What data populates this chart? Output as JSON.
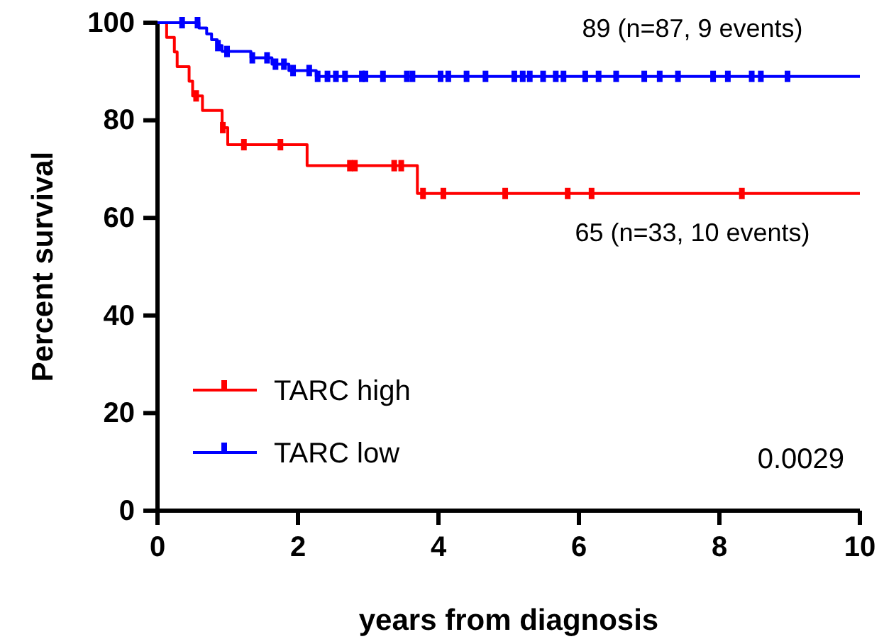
{
  "chart_data": {
    "type": "step",
    "xlabel": "years from diagnosis",
    "ylabel": "Percent survival",
    "xlim": [
      0,
      10
    ],
    "ylim": [
      0,
      100
    ],
    "xticks": [
      0,
      2,
      4,
      6,
      8,
      10
    ],
    "yticks": [
      0,
      20,
      40,
      60,
      80,
      100
    ],
    "grid": false,
    "legend": "bottom left",
    "series": [
      {
        "name": "TARC high",
        "color": "#ff0000",
        "x": [
          0,
          0.13,
          0.24,
          0.28,
          0.45,
          0.5,
          0.64,
          0.92,
          1.0,
          2.13,
          3.7,
          10
        ],
        "values": [
          100,
          97,
          94,
          91,
          88,
          85,
          82,
          78.5,
          75,
          70.7,
          65,
          65
        ]
      },
      {
        "name": "TARC low",
        "color": "#0000ff",
        "x": [
          0,
          0.59,
          0.7,
          0.77,
          0.85,
          0.92,
          1.33,
          1.63,
          1.87,
          2.26,
          10
        ],
        "values": [
          100,
          98.9,
          97.7,
          96.5,
          95.3,
          94.1,
          92.8,
          91.5,
          90.2,
          89,
          89
        ]
      },
      {
        "type": "scatter",
        "color": "#ff0000",
        "x": [
          0.55,
          0.93,
          1.23,
          1.75,
          2.74,
          2.81,
          3.37,
          3.47,
          3.78,
          4.07,
          4.95,
          5.84,
          6.18,
          8.32
        ],
        "values": [
          85,
          78.5,
          75,
          75,
          70.7,
          70.7,
          70.7,
          70.7,
          65,
          65,
          65,
          65,
          65,
          65
        ]
      },
      {
        "type": "scatter",
        "color": "#0000ff",
        "x": [
          0.35,
          0.57,
          0.86,
          0.99,
          1.35,
          1.56,
          1.68,
          1.8,
          1.93,
          2.16,
          2.28,
          2.42,
          2.54,
          2.67,
          2.91,
          2.96,
          3.21,
          3.55,
          3.63,
          4.03,
          4.14,
          4.4,
          4.67,
          5.08,
          5.2,
          5.3,
          5.49,
          5.67,
          5.78,
          6.09,
          6.28,
          6.53,
          6.93,
          7.15,
          7.41,
          7.91,
          8.12,
          8.46,
          8.59,
          8.97
        ],
        "values": [
          100,
          100,
          95.3,
          94.1,
          92.8,
          92.8,
          91.5,
          91.5,
          90.2,
          90.2,
          89,
          89,
          89,
          89,
          89,
          89,
          89,
          89,
          89,
          89,
          89,
          89,
          89,
          89,
          89,
          89,
          89,
          89,
          89,
          89,
          89,
          89,
          89,
          89,
          89,
          89,
          89,
          89,
          89,
          89
        ]
      }
    ],
    "annotations": [
      "89 (n=87, 9 events)",
      "65 (n=33, 10 events)",
      "0.0029"
    ]
  }
}
